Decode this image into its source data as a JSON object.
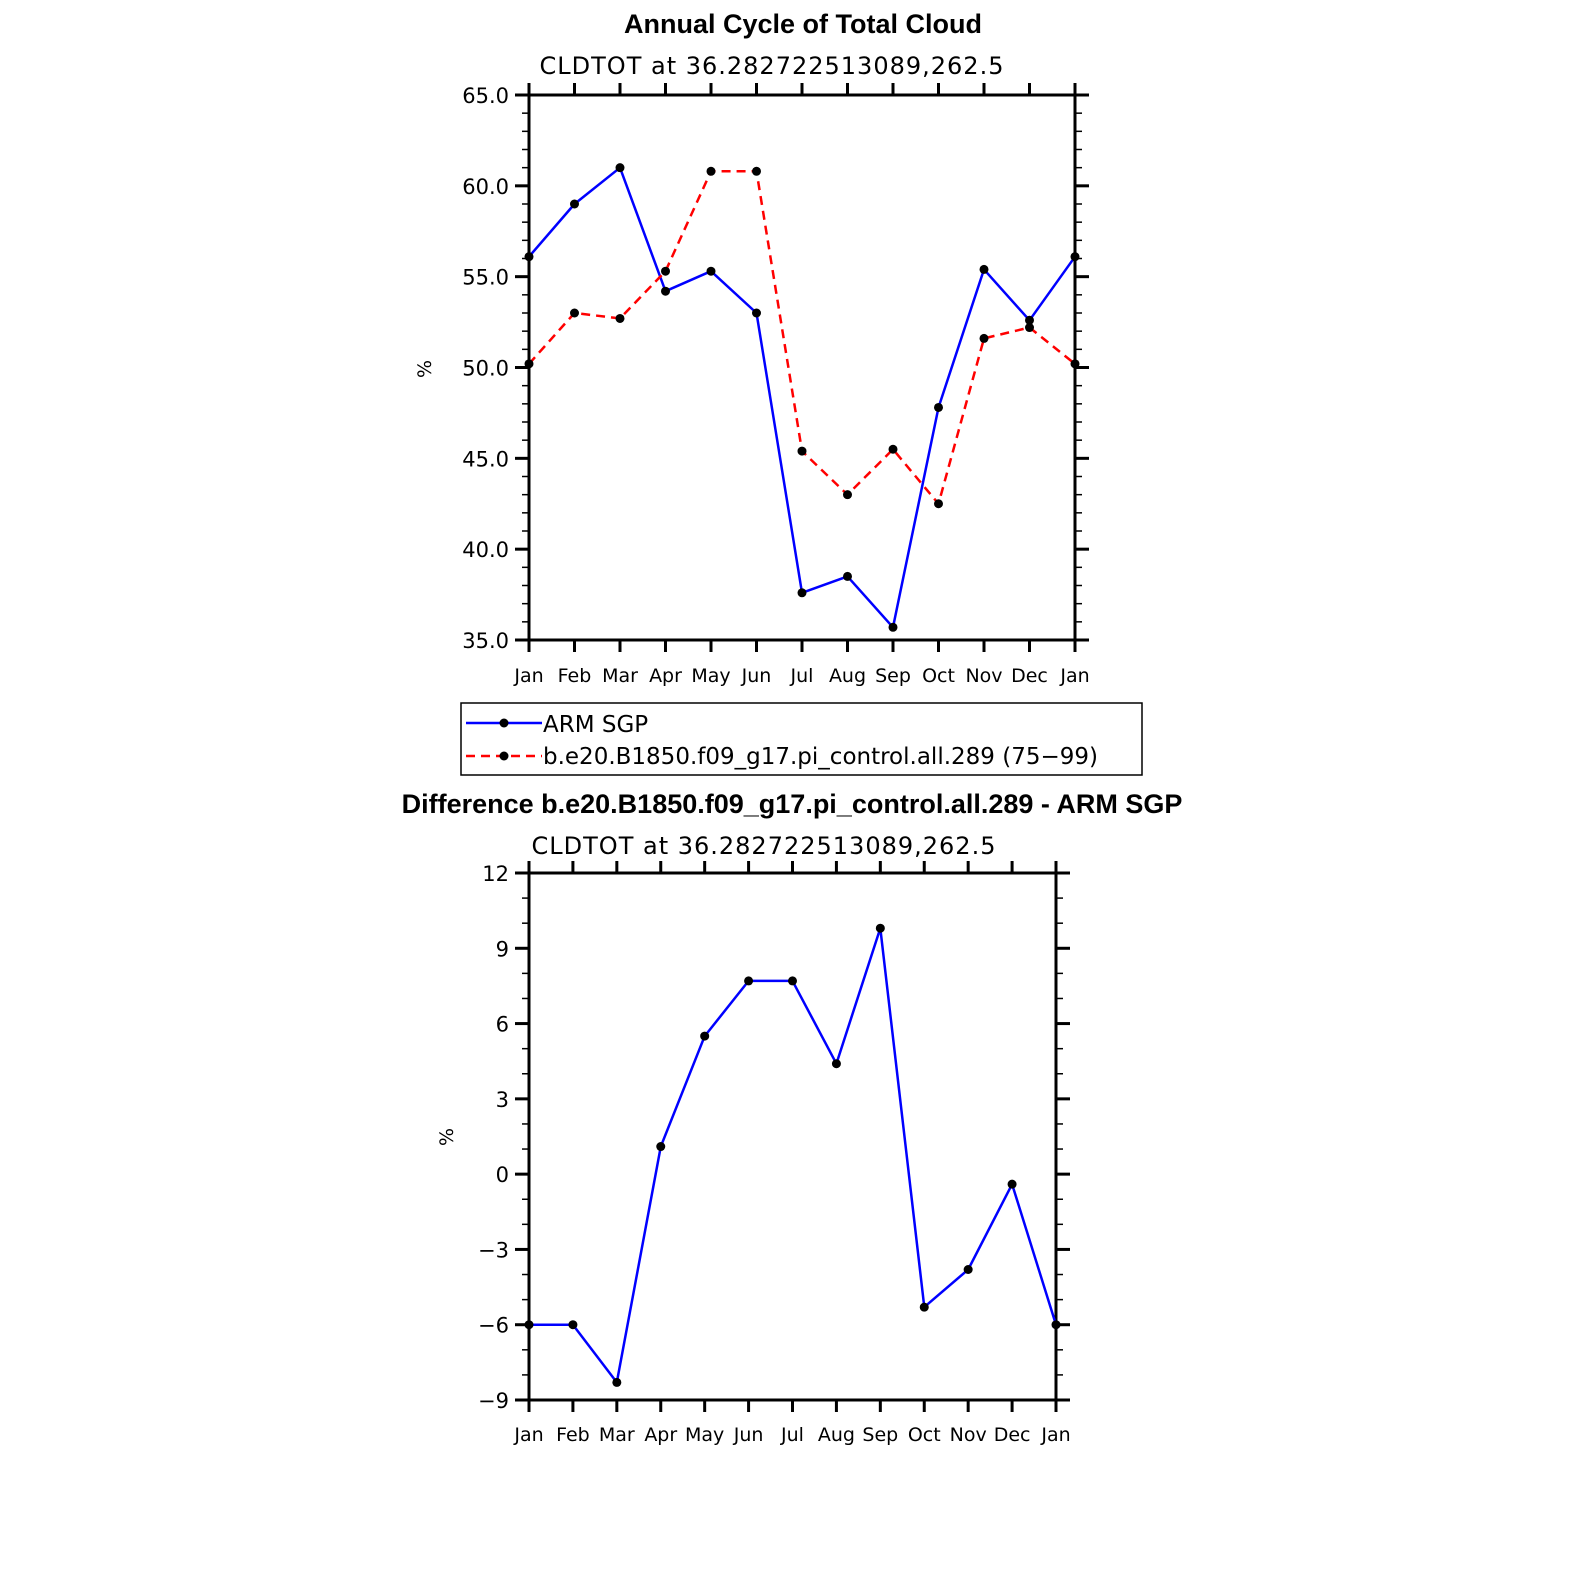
{
  "chart_data": [
    {
      "type": "line",
      "title": "Annual Cycle of Total Cloud",
      "subtitle": "CLDTOT at 36.282722513089,262.5",
      "xlabel": "",
      "ylabel": "%",
      "categories": [
        "Jan",
        "Feb",
        "Mar",
        "Apr",
        "May",
        "Jun",
        "Jul",
        "Aug",
        "Sep",
        "Oct",
        "Nov",
        "Dec",
        "Jan"
      ],
      "ylim": [
        35.0,
        65.0
      ],
      "yticks": [
        "35.0",
        "40.0",
        "45.0",
        "50.0",
        "55.0",
        "60.0",
        "65.0"
      ],
      "series": [
        {
          "name": "ARM SGP",
          "color": "#0000ff",
          "dash": "solid",
          "values": [
            56.1,
            59.0,
            61.0,
            54.2,
            55.3,
            53.0,
            37.6,
            38.5,
            35.7,
            47.8,
            55.4,
            52.6,
            56.1
          ]
        },
        {
          "name": "b.e20.B1850.f09_g17.pi_control.all.289 (75−99)",
          "color": "#ff0000",
          "dash": "dashed",
          "values": [
            50.2,
            53.0,
            52.7,
            55.3,
            60.8,
            60.8,
            45.4,
            43.0,
            45.5,
            42.5,
            51.6,
            52.2,
            50.2
          ]
        }
      ],
      "legend_position": "bottom"
    },
    {
      "type": "line",
      "title": "Difference b.e20.B1850.f09_g17.pi_control.all.289 - ARM SGP",
      "subtitle": "CLDTOT at 36.282722513089,262.5",
      "xlabel": "",
      "ylabel": "%",
      "categories": [
        "Jan",
        "Feb",
        "Mar",
        "Apr",
        "May",
        "Jun",
        "Jul",
        "Aug",
        "Sep",
        "Oct",
        "Nov",
        "Dec",
        "Jan"
      ],
      "ylim": [
        -9,
        12
      ],
      "yticks": [
        "−9",
        "−6",
        "−3",
        "0",
        "3",
        "6",
        "9",
        "12"
      ],
      "series": [
        {
          "name": "Difference",
          "color": "#0000ff",
          "dash": "solid",
          "values": [
            -6.0,
            -6.0,
            -8.3,
            1.1,
            5.5,
            7.7,
            7.7,
            4.4,
            9.8,
            -5.3,
            -3.8,
            -0.4,
            -6.0
          ]
        }
      ]
    }
  ]
}
